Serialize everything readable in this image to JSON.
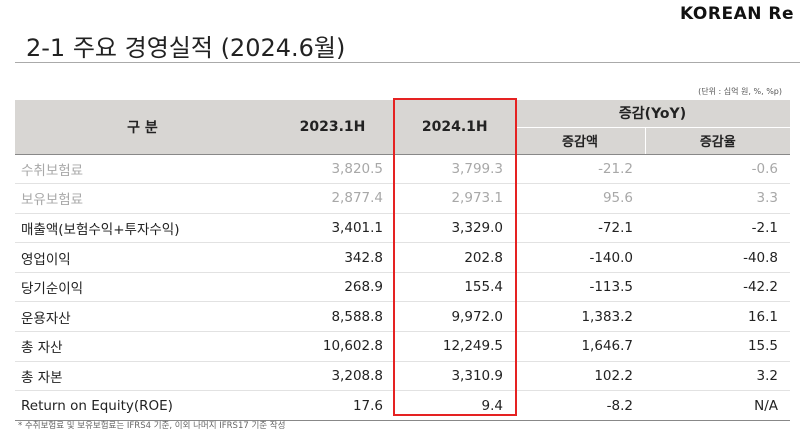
{
  "header": {
    "title": "2-1 주요 경영실적 (2024.6월)",
    "logo": "KOREAN Re"
  },
  "unit_note": "(단위 : 십억 원, %, %p)",
  "table": {
    "columns": [
      "구 분",
      "2023.1H",
      "2024.1H",
      "증감(YoY)"
    ],
    "sub_columns": [
      "증감액",
      "증감율"
    ],
    "rows": [
      [
        "수취보험료",
        "3,820.5",
        "3,799.3",
        "-21.2",
        "-0.6"
      ],
      [
        "보유보험료",
        "2,877.4",
        "2,973.1",
        "95.6",
        "3.3"
      ],
      [
        "매출액(보험수익+투자수익)",
        "3,401.1",
        "3,329.0",
        "-72.1",
        "-2.1"
      ],
      [
        "영업이익",
        "342.8",
        "202.8",
        "-140.0",
        "-40.8"
      ],
      [
        "당기순이익",
        "268.9",
        "155.4",
        "-113.5",
        "-42.2"
      ],
      [
        "운용자산",
        "8,588.8",
        "9,972.0",
        "1,383.2",
        "16.1"
      ],
      [
        "총 자산",
        "10,602.8",
        "12,249.5",
        "1,646.7",
        "15.5"
      ],
      [
        "총 자본",
        "3,208.8",
        "3,310.9",
        "102.2",
        "3.2"
      ],
      [
        "Return on Equity(ROE)",
        "17.6",
        "9.4",
        "-8.2",
        "N/A"
      ]
    ]
  },
  "footnote": "* 수취보험료 및 보유보험료는 IFRS4 기준, 이외 나머지 IFRS17 기준 작성"
}
